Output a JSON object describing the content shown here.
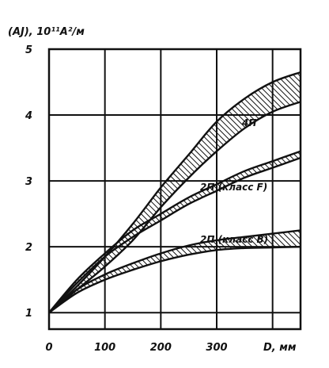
{
  "chart_data": {
    "type": "area",
    "y_axis_label": "(AJ), 10¹¹A²/м",
    "x_axis_label": "D, мм",
    "x_ticks": [
      "0",
      "100",
      "200",
      "300"
    ],
    "y_ticks": [
      "1",
      "2",
      "3",
      "4",
      "5"
    ],
    "xlim": [
      0,
      450
    ],
    "ylim": [
      0.75,
      5
    ],
    "grid": true,
    "series": [
      {
        "name": "4П",
        "x": [
          0,
          50,
          100,
          150,
          200,
          250,
          300,
          350,
          400,
          450
        ],
        "lower": [
          1.0,
          1.35,
          1.7,
          2.1,
          2.6,
          3.05,
          3.45,
          3.8,
          4.05,
          4.2
        ],
        "upper": [
          1.0,
          1.4,
          1.85,
          2.35,
          2.9,
          3.4,
          3.9,
          4.25,
          4.5,
          4.65
        ]
      },
      {
        "name": "2П (класс F)",
        "x": [
          0,
          50,
          100,
          150,
          200,
          250,
          300,
          350,
          400,
          450
        ],
        "lower": [
          1.0,
          1.45,
          1.85,
          2.15,
          2.4,
          2.65,
          2.85,
          3.05,
          3.2,
          3.35
        ],
        "upper": [
          1.0,
          1.5,
          1.9,
          2.25,
          2.5,
          2.75,
          2.95,
          3.15,
          3.3,
          3.45
        ]
      },
      {
        "name": "2П (класс B)",
        "x": [
          0,
          50,
          100,
          150,
          200,
          250,
          300,
          350,
          400,
          450
        ],
        "lower": [
          1.0,
          1.3,
          1.5,
          1.65,
          1.78,
          1.88,
          1.95,
          1.98,
          1.99,
          2.0
        ],
        "upper": [
          1.0,
          1.35,
          1.58,
          1.75,
          1.9,
          2.02,
          2.1,
          2.15,
          2.2,
          2.25
        ]
      }
    ]
  }
}
